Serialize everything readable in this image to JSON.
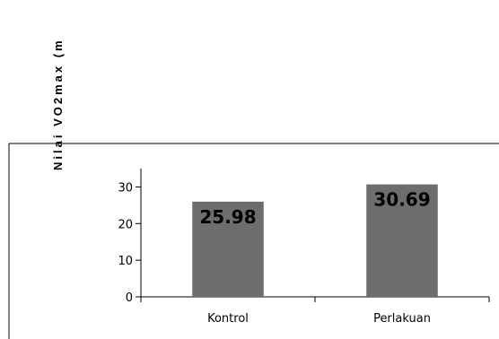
{
  "chart_data": {
    "type": "bar",
    "title": "",
    "xlabel": "",
    "ylabel": "Nilai VO2max (m",
    "categories": [
      "Kontrol",
      "Perlakuan"
    ],
    "values": [
      25.98,
      30.69
    ],
    "data_labels": [
      "25.98",
      "30.69"
    ],
    "y_ticks": [
      0,
      10,
      20,
      30
    ],
    "y_tick_labels": [
      "0",
      "10",
      "20",
      "30"
    ],
    "ylim": [
      0,
      35
    ],
    "grid": false,
    "legend": "none",
    "bar_color": "#6d6d6d"
  }
}
